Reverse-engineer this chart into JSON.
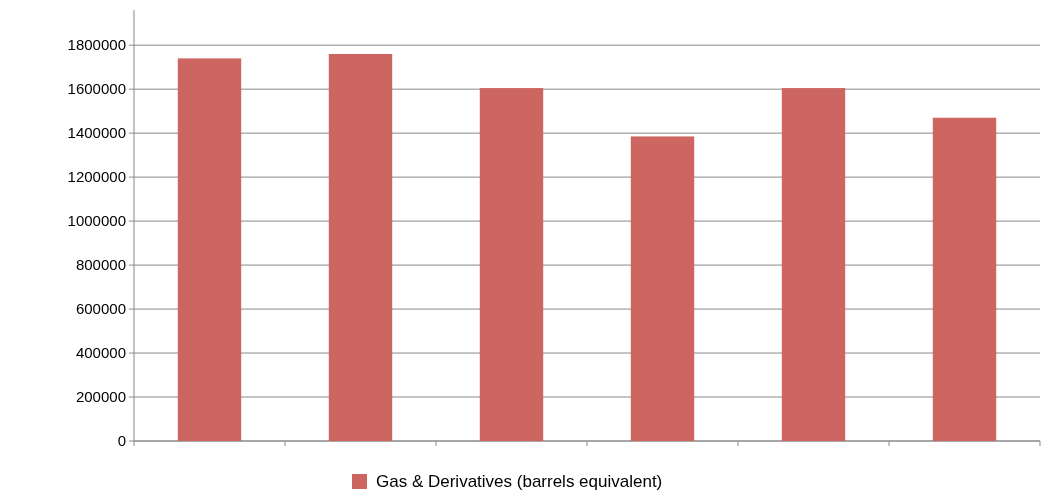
{
  "chart_data": {
    "type": "bar",
    "categories": [
      null,
      null,
      null,
      null,
      null,
      null
    ],
    "series": [
      {
        "name": "Gas & Derivatives (barrels equivalent)",
        "color": "#cd6660",
        "values": [
          1740000,
          1760000,
          1605000,
          1385000,
          1605000,
          1470000
        ]
      }
    ],
    "ylim": [
      0,
      1960000
    ],
    "yticks": [
      0,
      200000,
      400000,
      600000,
      800000,
      1000000,
      1200000,
      1400000,
      1600000,
      1800000
    ],
    "grid": "y",
    "legend": "bottom"
  }
}
